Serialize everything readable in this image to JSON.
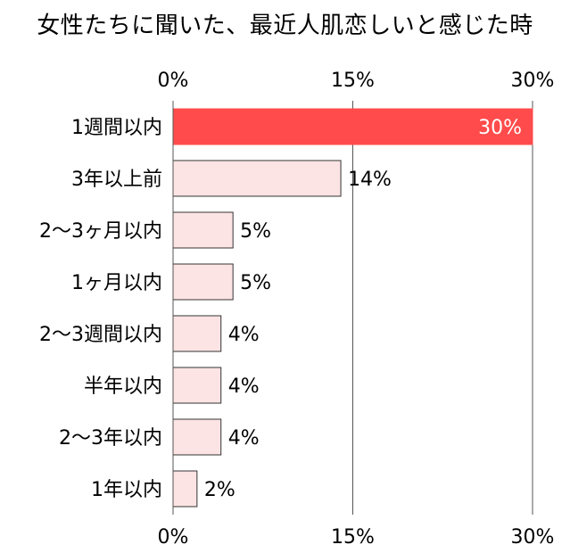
{
  "chart_data": {
    "type": "bar",
    "orientation": "horizontal",
    "title": "女性たちに聞いた、最近人肌恋しいと感じた時",
    "xlabel": "",
    "ylabel": "",
    "xlim": [
      0,
      30
    ],
    "x_ticks": [
      0,
      15,
      30
    ],
    "x_tick_labels": [
      "0%",
      "15%",
      "30%"
    ],
    "tick_labels_top_and_bottom": true,
    "grid": "vertical-lines-at-ticks",
    "legend": "none",
    "categories": [
      "1週間以内",
      "3年以上前",
      "2～3ヶ月以内",
      "1ヶ月以内",
      "2～3週間以内",
      "半年以内",
      "2～3年以内",
      "1年以内"
    ],
    "values": [
      30,
      14,
      5,
      5,
      4,
      4,
      4,
      2
    ],
    "value_labels": [
      "30%",
      "14%",
      "5%",
      "5%",
      "4%",
      "4%",
      "4%",
      "2%"
    ],
    "highlight_index": 0,
    "colors": {
      "highlight_fill": "#ff4b4b",
      "highlight_label": "#ffffff",
      "bar_fill": "#fde4e4",
      "bar_stroke": "#333333",
      "grid": "#555555",
      "text": "#000000"
    }
  }
}
